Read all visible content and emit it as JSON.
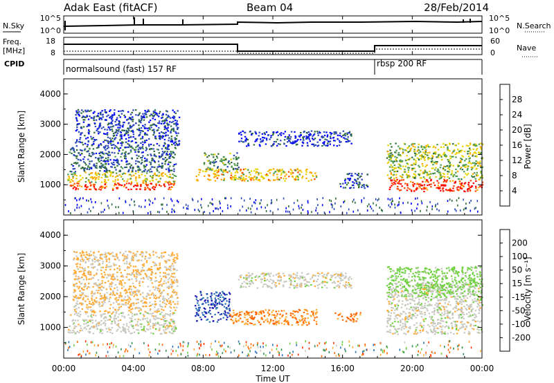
{
  "header": {
    "title": "Adak East (fitACF)",
    "beam": "Beam 04",
    "date": "28/Feb/2014"
  },
  "top_panel": {
    "left_label": "N.Sky",
    "right_label": "N.Search",
    "left_ticks": [
      "10^5",
      "10^0"
    ],
    "right_ticks": [
      "10^5",
      "10^0"
    ]
  },
  "freq_panel": {
    "left_label_1": "Freq.",
    "left_label_2": "[MHz]",
    "right_label": "Nave",
    "left_ticks": [
      "18",
      "8"
    ],
    "right_ticks": [
      "60",
      "0"
    ]
  },
  "cpid_panel": {
    "label": "CPID",
    "modes": [
      {
        "name": "normalsound (fast) 157 RF",
        "start_hour": 0,
        "end_hour": 18
      },
      {
        "name": "rbsp 200 RF",
        "start_hour": 18,
        "end_hour": 24
      }
    ]
  },
  "x_axis": {
    "label": "Time UT",
    "tick_labels": [
      "00:00",
      "04:00",
      "08:00",
      "12:00",
      "16:00",
      "20:00",
      "00:00"
    ],
    "range_hours": [
      0,
      24
    ]
  },
  "power_colorbar": {
    "label": "Power [dB]",
    "ticks": [
      "28",
      "24",
      "20",
      "16",
      "12",
      "8",
      "4"
    ],
    "colors": [
      "#ff0000",
      "#ff4a00",
      "#ffa500",
      "#e6d200",
      "#4f9c4e",
      "#2e6b38",
      "#2a48b8",
      "#0000ff"
    ]
  },
  "velocity_colorbar": {
    "label": "Velocity [m s⁻¹]",
    "ticks": [
      "200",
      "100",
      "50",
      "15",
      "-15",
      "-50",
      "-100",
      "-200"
    ],
    "colors": [
      "#1b1bb5",
      "#2f75b6",
      "#2f8f4f",
      "#6fd040",
      "#c8c8c0",
      "#ffaa33",
      "#ff6600",
      "#ff3300",
      "#ff0000"
    ]
  },
  "chart_data": [
    {
      "type": "heatmap",
      "title": "Power",
      "xlabel": "Time UT",
      "ylabel": "Slant Range [km]",
      "x_range_hours": [
        0,
        24
      ],
      "ylim": [
        0,
        4500
      ],
      "y_ticks": [
        1000,
        2000,
        3000,
        4000
      ],
      "scatter_bands": [
        {
          "t0": 0.2,
          "t1": 6.4,
          "r0": 850,
          "r1": 1100,
          "level": 28
        },
        {
          "t0": 0.2,
          "t1": 6.4,
          "r0": 1100,
          "r1": 1450,
          "level": 18
        },
        {
          "t0": 0.3,
          "t1": 6.4,
          "r0": 1450,
          "r1": 2300,
          "level": 8
        },
        {
          "t0": 0.6,
          "t1": 6.6,
          "r0": 2300,
          "r1": 3500,
          "level": 6
        },
        {
          "t0": 7.5,
          "t1": 14.5,
          "r0": 1150,
          "r1": 1550,
          "level": 20
        },
        {
          "t0": 8.0,
          "t1": 10.0,
          "r0": 1500,
          "r1": 2100,
          "level": 12
        },
        {
          "t0": 10.0,
          "t1": 16.5,
          "r0": 2300,
          "r1": 2800,
          "level": 5
        },
        {
          "t0": 15.8,
          "t1": 17.4,
          "r0": 900,
          "r1": 1400,
          "level": 6
        },
        {
          "t0": 18.5,
          "t1": 24.0,
          "r0": 800,
          "r1": 1200,
          "level": 28
        },
        {
          "t0": 18.5,
          "t1": 24.0,
          "r0": 1200,
          "r1": 2400,
          "level": 16
        }
      ]
    },
    {
      "type": "heatmap",
      "title": "Velocity",
      "xlabel": "Time UT",
      "ylabel": "Slant Range [km]",
      "x_range_hours": [
        0,
        24
      ],
      "ylim": [
        0,
        4500
      ],
      "y_ticks": [
        1000,
        2000,
        3000,
        4000
      ],
      "scatter_bands": [
        {
          "t0": 0.2,
          "t1": 6.4,
          "r0": 800,
          "r1": 1500,
          "level": 0
        },
        {
          "t0": 0.5,
          "t1": 6.5,
          "r0": 1500,
          "r1": 3500,
          "level": -20
        },
        {
          "t0": 7.5,
          "t1": 9.5,
          "r0": 1200,
          "r1": 2200,
          "level": 200
        },
        {
          "t0": 9.5,
          "t1": 14.5,
          "r0": 1100,
          "r1": 1600,
          "level": -50
        },
        {
          "t0": 10.0,
          "t1": 16.5,
          "r0": 2300,
          "r1": 2800,
          "level": 0
        },
        {
          "t0": 15.5,
          "t1": 17.0,
          "r0": 1200,
          "r1": 1500,
          "level": -60
        },
        {
          "t0": 18.5,
          "t1": 24.0,
          "r0": 800,
          "r1": 2500,
          "level": 0
        },
        {
          "t0": 18.5,
          "t1": 24.0,
          "r0": 2000,
          "r1": 3000,
          "level": 30
        }
      ]
    }
  ]
}
